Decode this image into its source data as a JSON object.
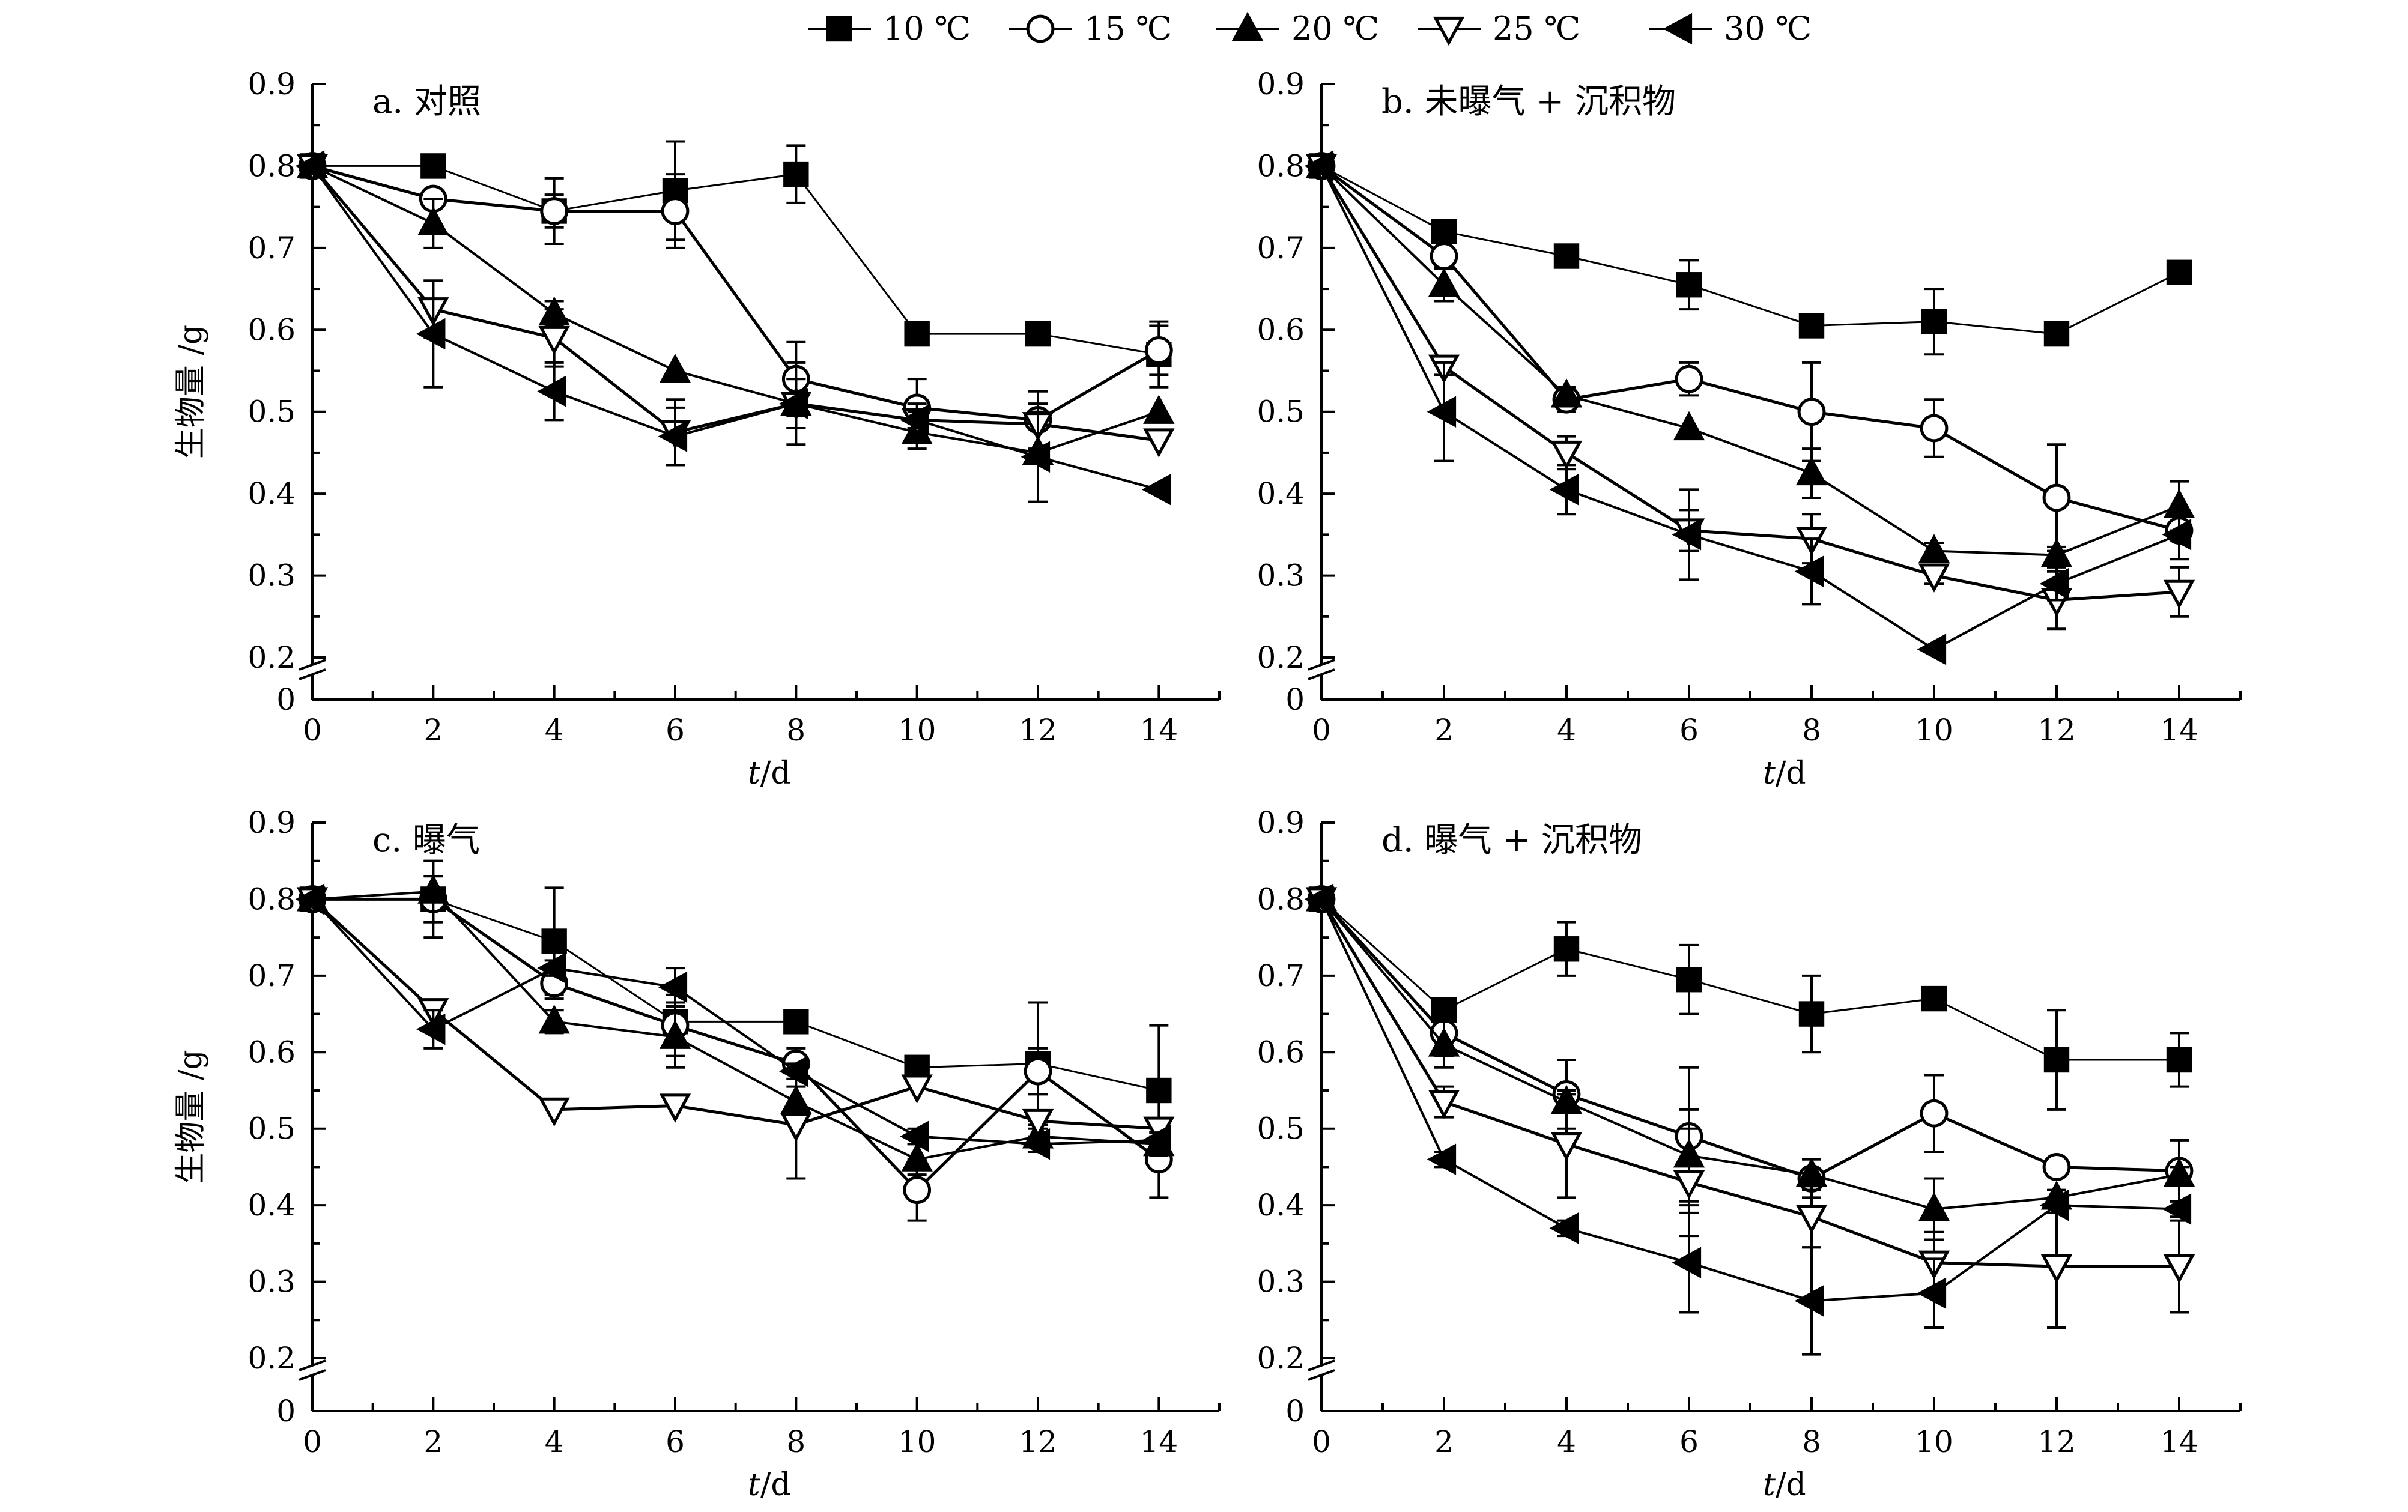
{
  "legend": [
    {
      "name": "10 ℃",
      "marker": "square"
    },
    {
      "name": "15 ℃",
      "marker": "circle"
    },
    {
      "name": "20 ℃",
      "marker": "triangle-up"
    },
    {
      "name": "25 ℃",
      "marker": "triangle-down"
    },
    {
      "name": "30 ℃",
      "marker": "triangle-left"
    }
  ],
  "chart_data": [
    {
      "type": "line",
      "title": "a. 对照",
      "xlabel_italic": "t",
      "xlabel_rest": "/d",
      "ylabel": "生物量 /g",
      "xlim": [
        0,
        15
      ],
      "ylim": [
        0,
        0.9
      ],
      "y_break": [
        0.02,
        0.2
      ],
      "xticks": [
        0,
        2,
        4,
        6,
        8,
        10,
        12,
        14
      ],
      "yticks": [
        0,
        0.2,
        0.3,
        0.4,
        0.5,
        0.6,
        0.7,
        0.8,
        0.9
      ],
      "ytick_labels": [
        "0",
        "0.2",
        "0.3",
        "0.4",
        "0.5",
        "0.6",
        "0.7",
        "0.8",
        "0.9"
      ],
      "x": [
        0,
        2,
        4,
        6,
        8,
        10,
        12,
        14
      ],
      "series": [
        {
          "name": "10 ℃",
          "marker": "square",
          "values": [
            0.8,
            0.8,
            0.745,
            0.77,
            0.79,
            0.595,
            0.595,
            0.57
          ],
          "err": [
            0,
            0,
            0.02,
            0.06,
            0.035,
            0,
            0.01,
            0.04
          ]
        },
        {
          "name": "15 ℃",
          "marker": "circle",
          "values": [
            0.8,
            0.76,
            0.745,
            0.745,
            0.54,
            0.505,
            0.49,
            0.575
          ],
          "err": [
            0,
            0.01,
            0.04,
            0.045,
            0.045,
            0.035,
            0.035,
            0.03
          ]
        },
        {
          "name": "20 ℃",
          "marker": "triangle-up",
          "values": [
            0.8,
            0.73,
            0.62,
            0.55,
            0.51,
            0.475,
            0.45,
            0.5
          ],
          "err": [
            0,
            0.03,
            0.015,
            0,
            0.05,
            0.02,
            0.06,
            0
          ]
        },
        {
          "name": "25 ℃",
          "marker": "triangle-down",
          "values": [
            0.8,
            0.625,
            0.59,
            0.475,
            0.51,
            0.49,
            0.485,
            0.465
          ],
          "err": [
            0,
            0.035,
            0.035,
            0.04,
            0.03,
            0.02,
            0.04,
            0
          ]
        },
        {
          "name": "30 ℃",
          "marker": "triangle-left",
          "values": [
            0.8,
            0.595,
            0.525,
            0.47,
            0.51,
            0.49,
            0.445,
            0.405
          ],
          "err": [
            0,
            0.065,
            0.035,
            0.035,
            0.03,
            0.01,
            0.055,
            0
          ]
        }
      ]
    },
    {
      "type": "line",
      "title": "b. 未曝气 + 沉积物",
      "xlabel_italic": "t",
      "xlabel_rest": "/d",
      "ylabel": "",
      "xlim": [
        0,
        15
      ],
      "ylim": [
        0,
        0.9
      ],
      "y_break": [
        0.02,
        0.2
      ],
      "xticks": [
        0,
        2,
        4,
        6,
        8,
        10,
        12,
        14
      ],
      "yticks": [
        0,
        0.2,
        0.3,
        0.4,
        0.5,
        0.6,
        0.7,
        0.8,
        0.9
      ],
      "ytick_labels": [
        "0",
        "0.2",
        "0.3",
        "0.4",
        "0.5",
        "0.6",
        "0.7",
        "0.8",
        "0.9"
      ],
      "x": [
        0,
        2,
        4,
        6,
        8,
        10,
        12,
        14
      ],
      "series": [
        {
          "name": "10 ℃",
          "marker": "square",
          "values": [
            0.8,
            0.72,
            0.69,
            0.655,
            0.605,
            0.61,
            0.595,
            0.67
          ],
          "err": [
            0,
            0.005,
            0,
            0.03,
            0,
            0.04,
            0.01,
            0.005
          ]
        },
        {
          "name": "15 ℃",
          "marker": "circle",
          "values": [
            0.8,
            0.69,
            0.515,
            0.54,
            0.5,
            0.48,
            0.395,
            0.355
          ],
          "err": [
            0,
            0.01,
            0.015,
            0.02,
            0.06,
            0.035,
            0.065,
            0.01
          ]
        },
        {
          "name": "20 ℃",
          "marker": "triangle-up",
          "values": [
            0.8,
            0.655,
            0.52,
            0.48,
            0.425,
            0.33,
            0.325,
            0.385
          ],
          "err": [
            0,
            0.02,
            0.01,
            0,
            0.03,
            0.01,
            0.01,
            0.03
          ]
        },
        {
          "name": "25 ℃",
          "marker": "triangle-down",
          "values": [
            0.8,
            0.555,
            0.45,
            0.355,
            0.345,
            0.3,
            0.27,
            0.28
          ],
          "err": [
            0,
            0.01,
            0.02,
            0.025,
            0.03,
            0.01,
            0.035,
            0.03
          ]
        },
        {
          "name": "30 ℃",
          "marker": "triangle-left",
          "values": [
            0.8,
            0.5,
            0.405,
            0.35,
            0.305,
            0.21,
            0.29,
            0.35
          ],
          "err": [
            0,
            0.06,
            0.03,
            0.055,
            0.04,
            0,
            0.02,
            0.03
          ]
        }
      ]
    },
    {
      "type": "line",
      "title": "c. 曝气",
      "xlabel_italic": "t",
      "xlabel_rest": "/d",
      "ylabel": "生物量 /g",
      "xlim": [
        0,
        15
      ],
      "ylim": [
        0,
        0.9
      ],
      "y_break": [
        0.02,
        0.2
      ],
      "xticks": [
        0,
        2,
        4,
        6,
        8,
        10,
        12,
        14
      ],
      "yticks": [
        0,
        0.2,
        0.3,
        0.4,
        0.5,
        0.6,
        0.7,
        0.8,
        0.9
      ],
      "ytick_labels": [
        "0",
        "0.2",
        "0.3",
        "0.4",
        "0.5",
        "0.6",
        "0.7",
        "0.8",
        "0.9"
      ],
      "x": [
        0,
        2,
        4,
        6,
        8,
        10,
        12,
        14
      ],
      "series": [
        {
          "name": "10 ℃",
          "marker": "square",
          "values": [
            0.8,
            0.8,
            0.745,
            0.64,
            0.64,
            0.58,
            0.585,
            0.55
          ],
          "err": [
            0,
            0.05,
            0.07,
            0.025,
            0,
            0,
            0.08,
            0.085
          ]
        },
        {
          "name": "15 ℃",
          "marker": "circle",
          "values": [
            0.8,
            0.8,
            0.69,
            0.635,
            0.585,
            0.42,
            0.575,
            0.46
          ],
          "err": [
            0,
            0.03,
            0.02,
            0.04,
            0.02,
            0.04,
            0.03,
            0.05
          ]
        },
        {
          "name": "20 ℃",
          "marker": "triangle-up",
          "values": [
            0.8,
            0.81,
            0.64,
            0.62,
            0.535,
            0.46,
            0.49,
            0.48
          ],
          "err": [
            0,
            0.04,
            0.015,
            0.04,
            0.02,
            0.02,
            0.02,
            0.015
          ]
        },
        {
          "name": "25 ℃",
          "marker": "triangle-down",
          "values": [
            0.8,
            0.655,
            0.525,
            0.53,
            0.505,
            0.555,
            0.51,
            0.5
          ],
          "err": [
            0,
            0,
            0,
            0,
            0.07,
            0,
            0.01,
            0.01
          ]
        },
        {
          "name": "30 ℃",
          "marker": "triangle-left",
          "values": [
            0.8,
            0.63,
            0.71,
            0.685,
            0.575,
            0.49,
            0.48,
            0.485
          ],
          "err": [
            0,
            0.025,
            0.01,
            0.025,
            0.01,
            0.01,
            0.01,
            0.01
          ]
        }
      ]
    },
    {
      "type": "line",
      "title": "d. 曝气 + 沉积物",
      "xlabel_italic": "t",
      "xlabel_rest": "/d",
      "ylabel": "",
      "xlim": [
        0,
        15
      ],
      "ylim": [
        0,
        0.9
      ],
      "y_break": [
        0.02,
        0.2
      ],
      "xticks": [
        0,
        2,
        4,
        6,
        8,
        10,
        12,
        14
      ],
      "yticks": [
        0,
        0.2,
        0.3,
        0.4,
        0.5,
        0.6,
        0.7,
        0.8,
        0.9
      ],
      "ytick_labels": [
        "0",
        "0.2",
        "0.3",
        "0.4",
        "0.5",
        "0.6",
        "0.7",
        "0.8",
        "0.9"
      ],
      "x": [
        0,
        2,
        4,
        6,
        8,
        10,
        12,
        14
      ],
      "series": [
        {
          "name": "10 ℃",
          "marker": "square",
          "values": [
            0.8,
            0.655,
            0.735,
            0.695,
            0.65,
            0.67,
            0.59,
            0.59
          ],
          "err": [
            0,
            0.01,
            0.035,
            0.045,
            0.05,
            0.01,
            0.065,
            0.035
          ]
        },
        {
          "name": "15 ℃",
          "marker": "circle",
          "values": [
            0.8,
            0.625,
            0.545,
            0.49,
            0.435,
            0.52,
            0.45,
            0.445
          ],
          "err": [
            0,
            0.03,
            0.045,
            0.09,
            0.025,
            0.05,
            0.005,
            0.04
          ]
        },
        {
          "name": "20 ℃",
          "marker": "triangle-up",
          "values": [
            0.8,
            0.61,
            0.535,
            0.465,
            0.44,
            0.395,
            0.41,
            0.44
          ],
          "err": [
            0,
            0.03,
            0.01,
            0.06,
            0.02,
            0.04,
            0.01,
            0.01
          ]
        },
        {
          "name": "25 ℃",
          "marker": "triangle-down",
          "values": [
            0.8,
            0.535,
            0.48,
            0.43,
            0.385,
            0.325,
            0.32,
            0.32
          ],
          "err": [
            0,
            0.02,
            0.07,
            0.07,
            0.04,
            0.04,
            0.08,
            0.06
          ]
        },
        {
          "name": "30 ℃",
          "marker": "triangle-left",
          "values": [
            0.8,
            0.46,
            0.37,
            0.325,
            0.275,
            0.285,
            0.4,
            0.395
          ],
          "err": [
            0,
            0.01,
            0.01,
            0.065,
            0.07,
            0.045,
            0.01,
            0.01
          ]
        }
      ]
    }
  ]
}
